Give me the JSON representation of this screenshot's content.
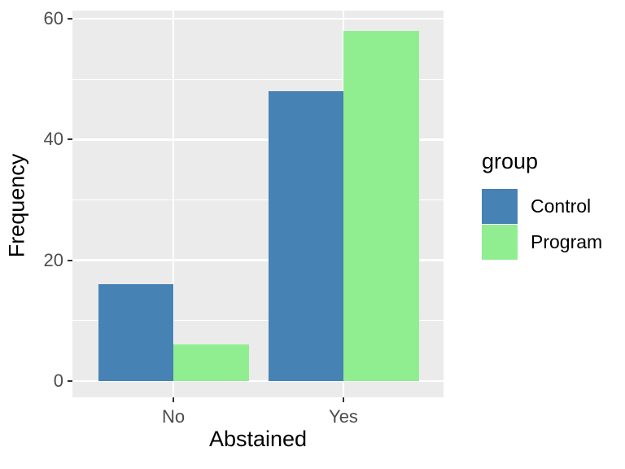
{
  "chart_data": {
    "type": "bar",
    "title": "",
    "xlabel": "Abstained",
    "ylabel": "Frequency",
    "categories": [
      "No",
      "Yes"
    ],
    "series": [
      {
        "name": "Control",
        "color": "#4682B4",
        "values": [
          16,
          48
        ]
      },
      {
        "name": "Program",
        "color": "#90EE90",
        "values": [
          6,
          58
        ]
      }
    ],
    "legend_title": "group",
    "legend_position": "right",
    "y_major_ticks": [
      0,
      20,
      40,
      60
    ],
    "y_minor_gridlines": [
      10,
      30,
      50
    ],
    "ylim": [
      0,
      60
    ],
    "grid": "on",
    "bar_layout": "dodged",
    "colors": {
      "panel_bg": "#EBEBEB",
      "gridline": "#FFFFFF",
      "tick_mark": "#333333",
      "tick_label": "#4D4D4D",
      "axis_title": "#000000"
    }
  }
}
